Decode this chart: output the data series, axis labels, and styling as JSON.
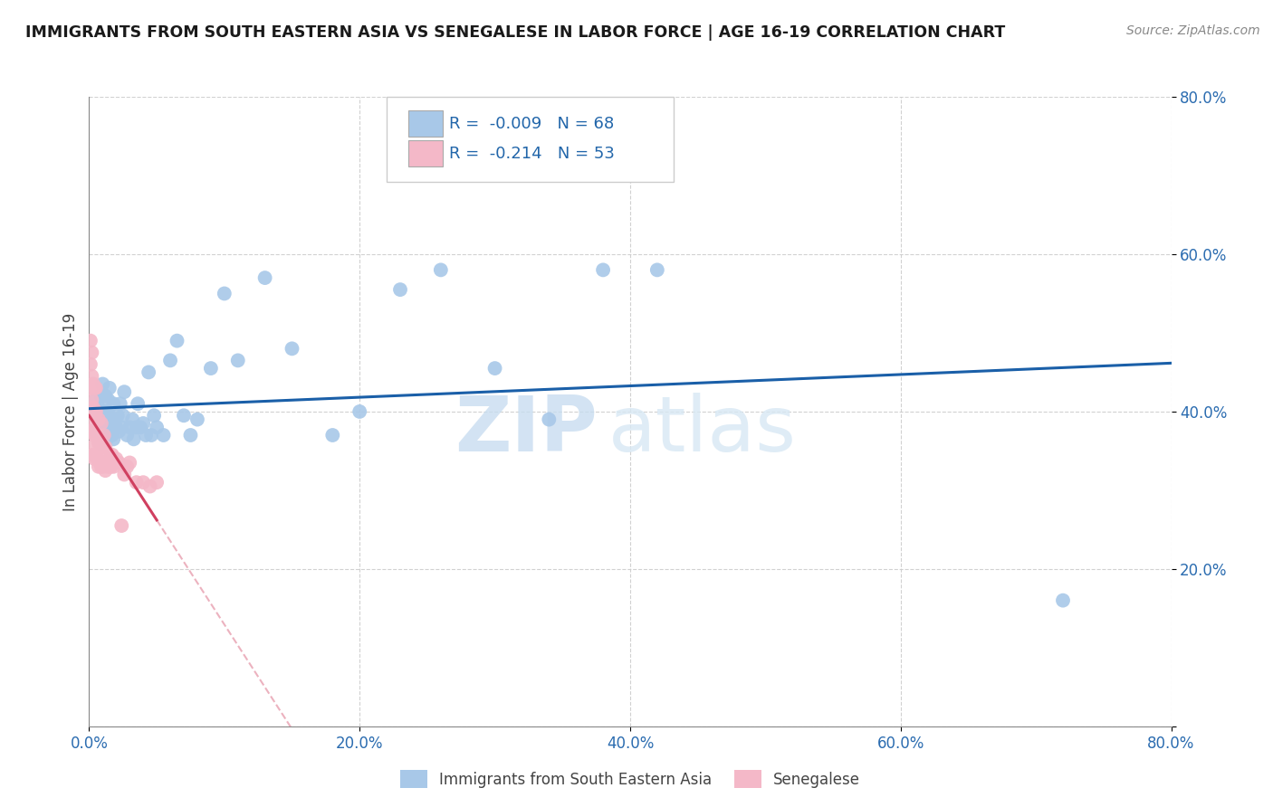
{
  "title": "IMMIGRANTS FROM SOUTH EASTERN ASIA VS SENEGALESE IN LABOR FORCE | AGE 16-19 CORRELATION CHART",
  "source": "Source: ZipAtlas.com",
  "ylabel": "In Labor Force | Age 16-19",
  "xlim": [
    0.0,
    0.8
  ],
  "ylim": [
    0.0,
    0.8
  ],
  "xticks": [
    0.0,
    0.2,
    0.4,
    0.6,
    0.8
  ],
  "yticks": [
    0.0,
    0.2,
    0.4,
    0.6,
    0.8
  ],
  "blue_R": -0.009,
  "blue_N": 68,
  "pink_R": -0.214,
  "pink_N": 53,
  "blue_color": "#a8c8e8",
  "pink_color": "#f4b8c8",
  "blue_line_color": "#1a5fa8",
  "pink_line_color": "#d04060",
  "legend_label_blue": "Immigrants from South Eastern Asia",
  "legend_label_pink": "Senegalese",
  "watermark_zip": "ZIP",
  "watermark_atlas": "atlas",
  "blue_scatter_x": [
    0.005,
    0.005,
    0.005,
    0.007,
    0.007,
    0.008,
    0.008,
    0.009,
    0.009,
    0.01,
    0.01,
    0.01,
    0.011,
    0.011,
    0.012,
    0.012,
    0.013,
    0.013,
    0.014,
    0.014,
    0.015,
    0.015,
    0.015,
    0.016,
    0.017,
    0.018,
    0.018,
    0.019,
    0.02,
    0.021,
    0.022,
    0.023,
    0.024,
    0.025,
    0.026,
    0.028,
    0.03,
    0.032,
    0.033,
    0.035,
    0.036,
    0.038,
    0.04,
    0.042,
    0.044,
    0.046,
    0.048,
    0.05,
    0.055,
    0.06,
    0.065,
    0.07,
    0.075,
    0.08,
    0.09,
    0.1,
    0.11,
    0.13,
    0.15,
    0.18,
    0.2,
    0.23,
    0.26,
    0.3,
    0.34,
    0.38,
    0.42,
    0.72
  ],
  "blue_scatter_y": [
    0.375,
    0.395,
    0.415,
    0.38,
    0.405,
    0.36,
    0.39,
    0.37,
    0.42,
    0.38,
    0.4,
    0.435,
    0.37,
    0.395,
    0.375,
    0.42,
    0.365,
    0.4,
    0.38,
    0.415,
    0.37,
    0.395,
    0.43,
    0.385,
    0.37,
    0.365,
    0.41,
    0.39,
    0.38,
    0.395,
    0.375,
    0.41,
    0.38,
    0.395,
    0.425,
    0.37,
    0.38,
    0.39,
    0.365,
    0.38,
    0.41,
    0.38,
    0.385,
    0.37,
    0.45,
    0.37,
    0.395,
    0.38,
    0.37,
    0.465,
    0.49,
    0.395,
    0.37,
    0.39,
    0.455,
    0.55,
    0.465,
    0.57,
    0.48,
    0.37,
    0.4,
    0.555,
    0.58,
    0.455,
    0.39,
    0.58,
    0.58,
    0.16
  ],
  "pink_scatter_x": [
    0.001,
    0.001,
    0.001,
    0.001,
    0.001,
    0.002,
    0.002,
    0.002,
    0.002,
    0.002,
    0.003,
    0.003,
    0.003,
    0.003,
    0.004,
    0.004,
    0.004,
    0.004,
    0.005,
    0.005,
    0.005,
    0.005,
    0.006,
    0.006,
    0.007,
    0.007,
    0.007,
    0.008,
    0.008,
    0.009,
    0.009,
    0.009,
    0.01,
    0.011,
    0.011,
    0.012,
    0.012,
    0.013,
    0.014,
    0.015,
    0.016,
    0.017,
    0.018,
    0.02,
    0.022,
    0.024,
    0.026,
    0.028,
    0.03,
    0.035,
    0.04,
    0.045,
    0.05
  ],
  "pink_scatter_y": [
    0.375,
    0.4,
    0.43,
    0.46,
    0.49,
    0.355,
    0.385,
    0.415,
    0.445,
    0.475,
    0.345,
    0.375,
    0.405,
    0.435,
    0.34,
    0.37,
    0.4,
    0.43,
    0.345,
    0.37,
    0.4,
    0.43,
    0.34,
    0.37,
    0.33,
    0.36,
    0.39,
    0.335,
    0.365,
    0.33,
    0.355,
    0.385,
    0.33,
    0.34,
    0.37,
    0.325,
    0.355,
    0.335,
    0.33,
    0.34,
    0.33,
    0.345,
    0.33,
    0.34,
    0.335,
    0.255,
    0.32,
    0.33,
    0.335,
    0.31,
    0.31,
    0.305,
    0.31
  ]
}
